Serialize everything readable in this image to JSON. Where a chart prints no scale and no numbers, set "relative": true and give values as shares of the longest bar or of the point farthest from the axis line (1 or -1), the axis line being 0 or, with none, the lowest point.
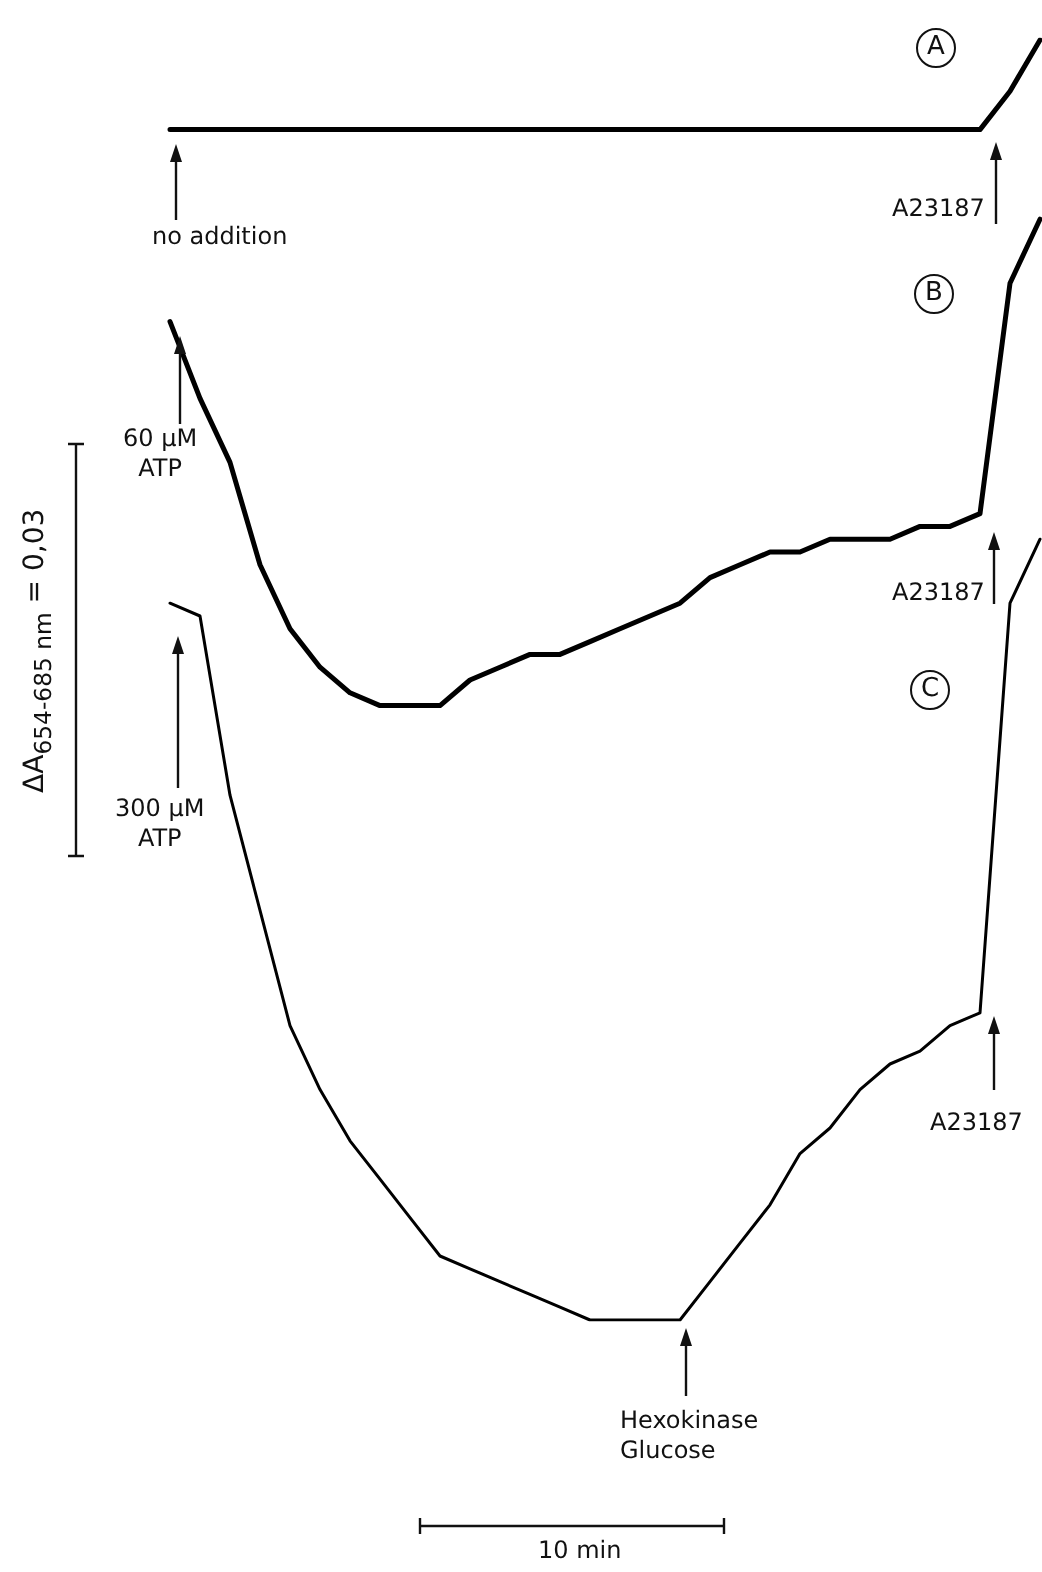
{
  "chart_data": {
    "type": "line",
    "relative": true,
    "tick_labels": false,
    "legend": false,
    "marker": "none",
    "line_style": "solid",
    "ylabel": "ΔA$_{654-685 nm}$ = 0,03",
    "annotations": [
      "no addition",
      "A23187",
      "60 µM\nATP",
      "A23187",
      "300 µM\nATP",
      "Hexokinase\nGlucose",
      "A23187",
      "10 min"
    ],
    "categories": [
      null,
      null,
      null,
      null,
      null,
      null,
      null,
      null,
      null,
      null,
      null,
      null,
      null,
      null,
      null,
      null,
      null,
      null,
      null,
      null,
      null,
      null,
      null,
      null,
      null,
      null,
      null,
      null,
      null,
      null
    ],
    "series": [
      {
        "name": "A",
        "color": "#000000",
        "values": [
          0.93,
          0.93,
          0.93,
          0.93,
          0.93,
          0.93,
          0.93,
          0.93,
          0.93,
          0.93,
          0.93,
          0.93,
          0.93,
          0.93,
          0.93,
          0.93,
          0.93,
          0.93,
          0.93,
          0.93,
          0.93,
          0.93,
          0.93,
          0.93,
          0.93,
          0.93,
          0.93,
          0.93,
          0.96,
          1
        ]
      },
      {
        "name": "B",
        "color": "#000000",
        "values": [
          0.78,
          0.72,
          0.67,
          0.59,
          0.54,
          0.51,
          0.49,
          0.48,
          0.48,
          0.48,
          0.5,
          0.51,
          0.52,
          0.52,
          0.53,
          0.54,
          0.55,
          0.56,
          0.58,
          0.59,
          0.6,
          0.6,
          0.61,
          0.61,
          0.61,
          0.62,
          0.62,
          0.63,
          0.81,
          0.86
        ]
      },
      {
        "name": "C",
        "color": "#000000",
        "values": [
          0.56,
          0.55,
          0.41,
          0.32,
          0.23,
          0.18,
          0.14,
          0.11,
          0.08,
          0.05,
          0.04,
          0.03,
          0.02,
          0.01,
          0,
          0,
          0,
          0,
          0.03,
          0.06,
          0.09,
          0.13,
          0.15,
          0.18,
          0.2,
          0.21,
          0.23,
          0.24,
          0.56,
          0.61
        ]
      }
    ]
  }
}
